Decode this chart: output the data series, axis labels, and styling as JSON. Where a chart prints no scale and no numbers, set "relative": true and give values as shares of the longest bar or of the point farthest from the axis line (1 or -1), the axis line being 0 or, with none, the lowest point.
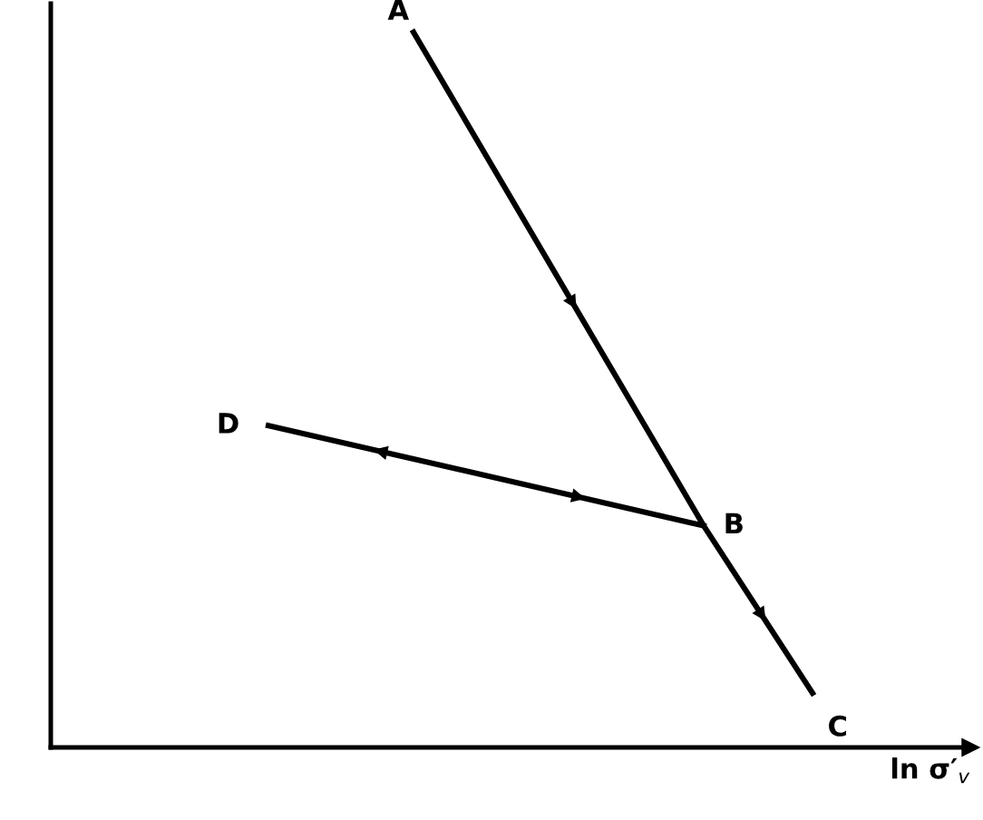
{
  "chart_data": {
    "type": "line",
    "relative": true,
    "xlabel": "ln σ′$_{v}$",
    "categories": [
      null,
      null,
      null,
      null,
      null,
      null,
      null,
      null,
      null,
      null,
      null,
      null,
      null,
      null,
      null,
      null
    ],
    "series": [
      {
        "color": "#000000",
        "values": [
          null,
          null,
          null,
          null,
          1,
          null,
          null,
          null,
          null,
          null,
          null,
          null,
          0.31,
          null,
          null,
          0.076
        ]
      },
      {
        "color": "#000000",
        "values": [
          0.45,
          null,
          null,
          null,
          null,
          null,
          null,
          null,
          null,
          null,
          null,
          null,
          0.31,
          null,
          null,
          null
        ]
      }
    ],
    "annotations": [
      "A",
      "B",
      "C",
      "D"
    ],
    "marker": "none",
    "line_style": "solid"
  }
}
